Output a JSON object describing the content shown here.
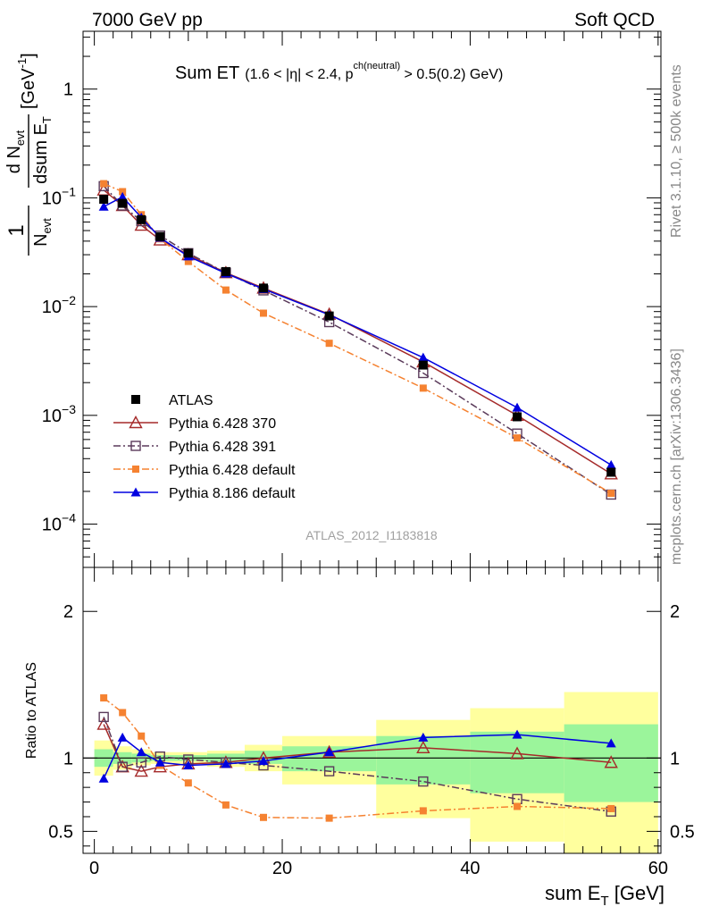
{
  "header": {
    "left": "7000 GeV pp",
    "right": "Soft QCD"
  },
  "side_labels": {
    "top": "Rivet 3.1.10, ≥ 500k events",
    "bottom": "mcplots.cern.ch [arXiv:1306.3436]"
  },
  "analysis_id": "ATLAS_2012_I1183818",
  "plot_title": {
    "main": "Sum ET",
    "cut_part1": "(1.6 < |η| < 2.4, p",
    "cut_sup": "ch(neutral)",
    "cut_part2": " > 0.5(0.2) GeV)"
  },
  "y_axis_label": {
    "one": "1",
    "n_evt": "N",
    "n_evt_sub": "evt",
    "frac_num": "d N",
    "frac_num_sub": "evt",
    "frac_den": "dsum E",
    "frac_den_sub": "T",
    "unit": "[GeV",
    "unit_sup": "-1",
    "unit_close": "]"
  },
  "ratio_label": "Ratio to ATLAS",
  "x_axis_label": {
    "text": "sum E",
    "sub": "T",
    "unit": " [GeV]"
  },
  "chart_data": {
    "type": "scatter",
    "x": [
      1,
      3,
      5,
      7,
      10,
      14,
      18,
      25,
      35,
      45,
      55
    ],
    "xlim": [
      -1.2,
      60.3
    ],
    "main_ylim": [
      4e-05,
      3.4
    ],
    "main_yscale": "log",
    "ratio_ylim": [
      0.35,
      2.3
    ],
    "x_ticks": [
      {
        "v": 0,
        "label": "0"
      },
      {
        "v": 20,
        "label": "20"
      },
      {
        "v": 40,
        "label": "40"
      },
      {
        "v": 60,
        "label": "60"
      }
    ],
    "main_y_ticks": [
      {
        "v": 1,
        "m": "1",
        "e": ""
      },
      {
        "v": 0.1,
        "m": "10",
        "e": "−1"
      },
      {
        "v": 0.01,
        "m": "10",
        "e": "−2"
      },
      {
        "v": 0.001,
        "m": "10",
        "e": "−3"
      },
      {
        "v": 0.0001,
        "m": "10",
        "e": "−4"
      }
    ],
    "ratio_y_ticks": [
      {
        "v": 0.5,
        "label": "0.5"
      },
      {
        "v": 1,
        "label": "1"
      },
      {
        "v": 2,
        "label": "2"
      }
    ],
    "bin_edges": [
      0,
      2,
      4,
      6,
      8,
      12,
      16,
      20,
      30,
      40,
      50,
      60
    ],
    "band_inner": [
      [
        0.94,
        1.06
      ],
      [
        0.96,
        1.04
      ],
      [
        0.97,
        1.03
      ],
      [
        0.98,
        1.02
      ],
      [
        0.98,
        1.02
      ],
      [
        0.97,
        1.03
      ],
      [
        0.96,
        1.05
      ],
      [
        0.91,
        1.08
      ],
      [
        0.82,
        1.15
      ],
      [
        0.76,
        1.18
      ],
      [
        0.7,
        1.23
      ]
    ],
    "band_outer": [
      [
        0.88,
        1.12
      ],
      [
        0.92,
        1.08
      ],
      [
        0.95,
        1.06
      ],
      [
        0.96,
        1.04
      ],
      [
        0.96,
        1.04
      ],
      [
        0.94,
        1.05
      ],
      [
        0.91,
        1.09
      ],
      [
        0.82,
        1.15
      ],
      [
        0.59,
        1.26
      ],
      [
        0.43,
        1.34
      ],
      [
        0.33,
        1.45
      ]
    ],
    "legend_position": "lower-left",
    "series": [
      {
        "name": "ATLAS",
        "marker": "filled-square",
        "color": "#000000",
        "line": "none",
        "values": [
          0.097,
          0.089,
          0.063,
          0.044,
          0.031,
          0.021,
          0.0148,
          0.0082,
          0.0029,
          0.00097,
          0.0003
        ]
      },
      {
        "name": "Pythia 6.428 370",
        "marker": "open-triangle",
        "color": "#a52a2a",
        "line": "solid",
        "values": [
          0.118,
          0.085,
          0.056,
          0.041,
          0.03,
          0.0205,
          0.0148,
          0.0085,
          0.0031,
          0.001,
          0.00029
        ],
        "ratio": [
          1.23,
          0.94,
          0.91,
          0.94,
          0.96,
          0.97,
          1.0,
          1.04,
          1.07,
          1.03,
          0.97
        ]
      },
      {
        "name": "Pythia 6.428 391",
        "marker": "open-square",
        "color": "#5a3a5a",
        "line": "dash-dot",
        "values": [
          0.128,
          0.085,
          0.061,
          0.045,
          0.031,
          0.0205,
          0.0141,
          0.0072,
          0.00245,
          0.00068,
          0.000187
        ],
        "ratio": [
          1.28,
          0.94,
          0.97,
          1.01,
          0.99,
          0.97,
          0.95,
          0.91,
          0.84,
          0.72,
          0.635
        ]
      },
      {
        "name": "Pythia 6.428 default",
        "marker": "filled-square-small",
        "color": "#f58231",
        "line": "dash-dot",
        "values": [
          0.135,
          0.114,
          0.07,
          0.042,
          0.026,
          0.0142,
          0.0087,
          0.0046,
          0.00178,
          0.00062,
          0.000192
        ],
        "ratio": [
          1.41,
          1.31,
          1.15,
          0.95,
          0.83,
          0.68,
          0.595,
          0.59,
          0.64,
          0.67,
          0.655
        ]
      },
      {
        "name": "Pythia 8.186 default",
        "marker": "filled-triangle",
        "color": "#0000e0",
        "line": "solid",
        "values": [
          0.083,
          0.102,
          0.066,
          0.043,
          0.029,
          0.0202,
          0.0145,
          0.0084,
          0.0034,
          0.00118,
          0.00035
        ],
        "ratio": [
          0.86,
          1.14,
          1.04,
          0.97,
          0.95,
          0.96,
          0.98,
          1.04,
          1.14,
          1.16,
          1.1
        ]
      }
    ]
  }
}
